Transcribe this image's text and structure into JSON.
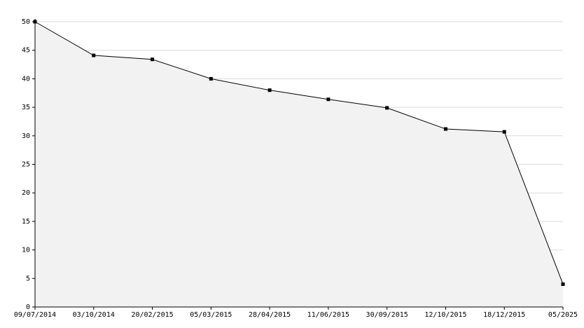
{
  "chart_data": {
    "type": "area",
    "categories": [
      "09/07/2014",
      "03/10/2014",
      "20/02/2015",
      "05/03/2015",
      "28/04/2015",
      "11/06/2015",
      "30/09/2015",
      "12/10/2015",
      "18/12/2015",
      "05/2025"
    ],
    "values": [
      50,
      44.1,
      43.4,
      40,
      38,
      36.4,
      34.9,
      31.2,
      30.7,
      4
    ],
    "color": "#000000",
    "fill": "#f2f2f2",
    "ylim": [
      0,
      50
    ],
    "yticks": [
      0,
      5,
      10,
      15,
      20,
      25,
      30,
      35,
      40,
      45,
      50
    ],
    "grid": true
  }
}
